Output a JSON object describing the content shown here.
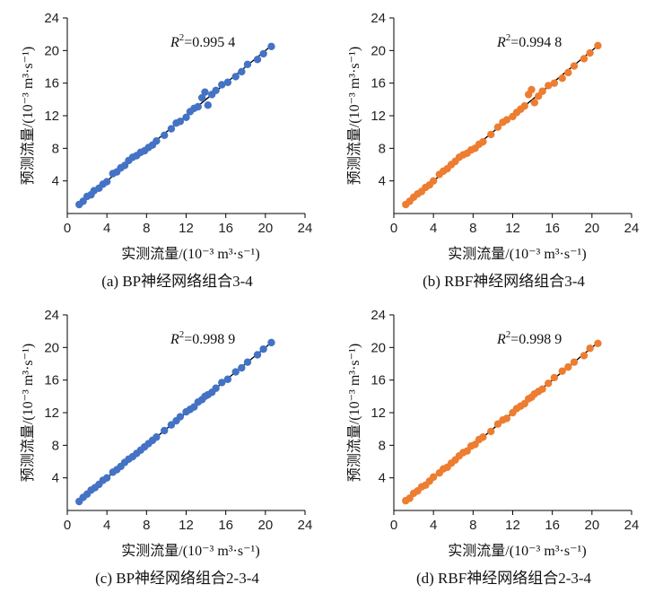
{
  "chart_data": [
    {
      "type": "scatter",
      "caption": "(a) BP神经网络组合3-4",
      "xlabel": "实测流量/(10⁻³ m³·s⁻¹)",
      "ylabel": "预测流量/(10⁻³ m³·s⁻¹)",
      "annotation_var": "R",
      "annotation_sup": "2",
      "annotation_value": "=0.995 4",
      "xlim": [
        0,
        24
      ],
      "ylim": [
        0,
        24
      ],
      "xticks": [
        "0",
        "4",
        "8",
        "12",
        "16",
        "20",
        "24"
      ],
      "yticks": [
        "4",
        "8",
        "12",
        "16",
        "20",
        "24"
      ],
      "color": "#4472c4",
      "fit_line": [
        [
          1.2,
          1.2
        ],
        [
          20.6,
          20.6
        ]
      ],
      "x": [
        1.2,
        1.6,
        2.0,
        2.4,
        2.7,
        3.2,
        3.6,
        4.0,
        4.6,
        5.0,
        5.4,
        5.8,
        6.2,
        6.6,
        7.0,
        7.4,
        7.8,
        8.2,
        8.6,
        9.0,
        9.8,
        10.5,
        11.0,
        11.4,
        12.0,
        12.4,
        12.8,
        13.2,
        13.6,
        13.9,
        14.2,
        14.6,
        15.0,
        15.6,
        16.2,
        17.0,
        17.6,
        18.2,
        19.2,
        19.8,
        20.6
      ],
      "y": [
        1.1,
        1.5,
        2.1,
        2.3,
        2.8,
        3.1,
        3.6,
        3.9,
        4.9,
        5.1,
        5.6,
        5.9,
        6.5,
        6.9,
        7.1,
        7.5,
        7.7,
        8.1,
        8.4,
        8.9,
        9.6,
        10.4,
        11.1,
        11.3,
        11.8,
        12.5,
        12.9,
        13.1,
        14.2,
        14.9,
        13.3,
        14.6,
        15.1,
        15.8,
        16.1,
        16.8,
        17.4,
        18.3,
        18.9,
        19.6,
        20.5
      ]
    },
    {
      "type": "scatter",
      "caption": "(b) RBF神经网络组合3-4",
      "xlabel": "实测流量/(10⁻³ m³·s⁻¹)",
      "ylabel": "预测流量/(10⁻³ m³·s⁻¹)",
      "annotation_var": "R",
      "annotation_sup": "2",
      "annotation_value": "=0.994 8",
      "xlim": [
        0,
        24
      ],
      "ylim": [
        0,
        24
      ],
      "xticks": [
        "0",
        "4",
        "8",
        "12",
        "16",
        "20",
        "24"
      ],
      "yticks": [
        "4",
        "8",
        "12",
        "16",
        "20",
        "24"
      ],
      "color": "#ed7d31",
      "fit_line": [
        [
          1.2,
          1.2
        ],
        [
          20.6,
          20.6
        ]
      ],
      "x": [
        1.2,
        1.6,
        2.0,
        2.4,
        2.8,
        3.2,
        3.6,
        4.0,
        4.6,
        5.0,
        5.4,
        5.8,
        6.2,
        6.6,
        7.0,
        7.4,
        7.8,
        8.2,
        8.6,
        9.0,
        9.8,
        10.5,
        11.0,
        11.4,
        12.0,
        12.4,
        12.8,
        13.2,
        13.6,
        13.9,
        14.2,
        14.6,
        15.0,
        15.6,
        16.2,
        17.0,
        17.6,
        18.2,
        19.2,
        19.8,
        20.6
      ],
      "y": [
        1.1,
        1.5,
        2.0,
        2.4,
        2.7,
        3.2,
        3.5,
        4.0,
        4.8,
        5.2,
        5.5,
        6.0,
        6.4,
        6.9,
        7.2,
        7.4,
        7.8,
        8.0,
        8.5,
        8.8,
        9.7,
        10.6,
        11.2,
        11.5,
        11.9,
        12.4,
        12.8,
        13.2,
        14.6,
        15.2,
        13.6,
        14.4,
        15.0,
        15.7,
        16.0,
        16.6,
        17.3,
        18.1,
        19.0,
        19.7,
        20.6
      ]
    },
    {
      "type": "scatter",
      "caption": "(c) BP神经网络组合2-3-4",
      "xlabel": "实测流量/(10⁻³ m³·s⁻¹)",
      "ylabel": "预测流量/(10⁻³ m³·s⁻¹)",
      "annotation_var": "R",
      "annotation_sup": "2",
      "annotation_value": "=0.998 9",
      "xlim": [
        0,
        24
      ],
      "ylim": [
        0,
        24
      ],
      "xticks": [
        "0",
        "4",
        "8",
        "12",
        "16",
        "20",
        "24"
      ],
      "yticks": [
        "4",
        "8",
        "12",
        "16",
        "20",
        "24"
      ],
      "color": "#4472c4",
      "fit_line": [
        [
          1.2,
          1.2
        ],
        [
          20.6,
          20.6
        ]
      ],
      "x": [
        1.2,
        1.6,
        2.0,
        2.4,
        2.8,
        3.2,
        3.6,
        4.0,
        4.6,
        5.0,
        5.4,
        5.8,
        6.2,
        6.6,
        7.0,
        7.4,
        7.8,
        8.2,
        8.6,
        9.0,
        9.8,
        10.5,
        11.0,
        11.4,
        12.0,
        12.4,
        12.8,
        13.2,
        13.6,
        13.9,
        14.2,
        14.6,
        15.0,
        15.6,
        16.2,
        17.0,
        17.6,
        18.2,
        19.2,
        19.8,
        20.6
      ],
      "y": [
        1.1,
        1.6,
        2.0,
        2.5,
        2.8,
        3.2,
        3.7,
        4.0,
        4.7,
        5.0,
        5.4,
        5.9,
        6.3,
        6.6,
        7.0,
        7.4,
        7.8,
        8.2,
        8.6,
        9.0,
        9.8,
        10.5,
        11.0,
        11.5,
        12.1,
        12.4,
        12.7,
        13.3,
        13.6,
        14.0,
        14.2,
        14.5,
        15.0,
        15.7,
        16.1,
        17.0,
        17.5,
        18.2,
        19.1,
        19.8,
        20.6
      ]
    },
    {
      "type": "scatter",
      "caption": "(d) RBF神经网络组合2-3-4",
      "xlabel": "实测流量/(10⁻³ m³·s⁻¹)",
      "ylabel": "预测流量/(10⁻³ m³·s⁻¹)",
      "annotation_var": "R",
      "annotation_sup": "2",
      "annotation_value": "=0.998 9",
      "xlim": [
        0,
        24
      ],
      "ylim": [
        0,
        24
      ],
      "xticks": [
        "0",
        "4",
        "8",
        "12",
        "16",
        "20",
        "24"
      ],
      "yticks": [
        "4",
        "8",
        "12",
        "16",
        "20",
        "24"
      ],
      "color": "#ed7d31",
      "fit_line": [
        [
          1.2,
          1.2
        ],
        [
          20.6,
          20.6
        ]
      ],
      "x": [
        1.2,
        1.6,
        2.0,
        2.4,
        2.8,
        3.2,
        3.6,
        4.0,
        4.6,
        5.0,
        5.4,
        5.8,
        6.2,
        6.6,
        7.0,
        7.4,
        7.8,
        8.2,
        8.6,
        9.0,
        9.8,
        10.5,
        11.0,
        11.4,
        12.0,
        12.4,
        12.8,
        13.2,
        13.6,
        13.9,
        14.2,
        14.6,
        15.0,
        15.6,
        16.2,
        17.0,
        17.6,
        18.2,
        19.2,
        19.8,
        20.6
      ],
      "y": [
        1.2,
        1.5,
        2.1,
        2.4,
        2.9,
        3.1,
        3.6,
        4.1,
        4.6,
        5.1,
        5.3,
        5.8,
        6.2,
        6.7,
        7.1,
        7.3,
        7.9,
        8.1,
        8.7,
        9.0,
        9.7,
        10.6,
        11.1,
        11.3,
        12.0,
        12.5,
        12.8,
        13.1,
        13.7,
        13.9,
        14.3,
        14.6,
        14.9,
        15.6,
        16.3,
        17.1,
        17.6,
        18.2,
        19.0,
        19.9,
        20.5
      ]
    }
  ]
}
